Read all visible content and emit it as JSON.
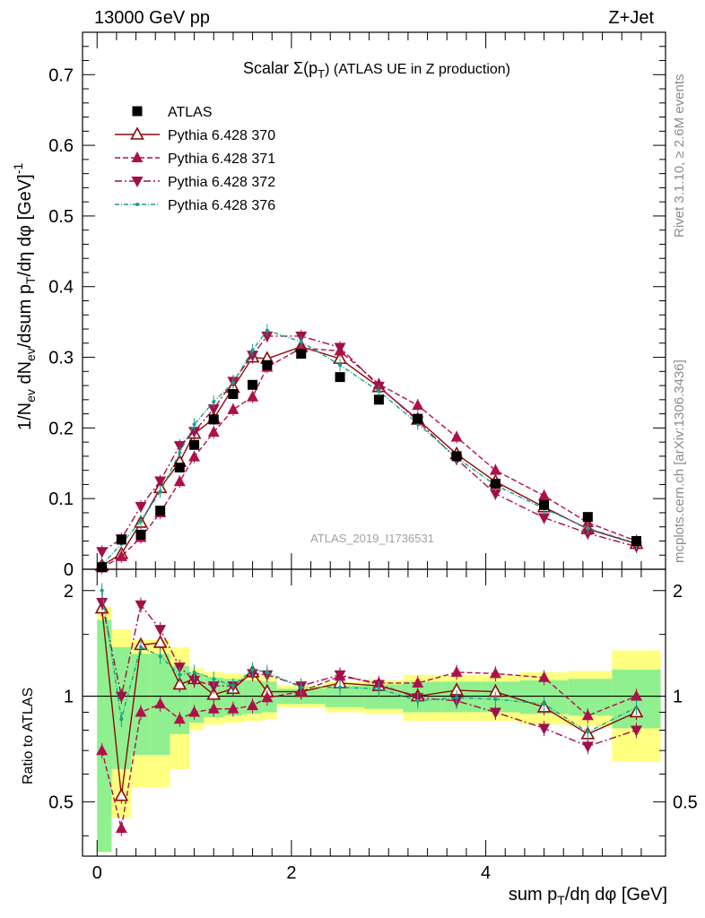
{
  "header": {
    "left": "13000 GeV pp",
    "right": "Z+Jet"
  },
  "plot_title": {
    "prefix": "Scalar Σ(p",
    "sub": "T",
    "suffix": ") (ATLAS UE in Z production)"
  },
  "side_labels": {
    "rivet": "Rivet 3.1.10, ≥ 2.6M events",
    "mcplots": "mcplots.cern.ch [arXiv:1306.3436]"
  },
  "watermark": "ATLAS_2019_I1736531",
  "colors": {
    "data": "#000000",
    "p370": "#8b0a0a",
    "p371": "#b0104a",
    "p372": "#a01048",
    "p376": "#1aa08a",
    "band_green": "#90f090",
    "band_yellow": "#ffff80"
  },
  "chart_data": [
    {
      "type": "scatter",
      "panel": "main",
      "ylabel": "1/N_ev dN_ev/dsum p_T/dη dφ [GeV]^-1",
      "xlim": [
        -0.15,
        5.85
      ],
      "ylim": [
        0,
        0.76
      ],
      "y_ticks": [
        "0",
        "0.1",
        "0.2",
        "0.3",
        "0.4",
        "0.5",
        "0.6",
        "0.7"
      ],
      "legend_position": "top-left",
      "x": [
        0.05,
        0.25,
        0.45,
        0.65,
        0.85,
        1.0,
        1.2,
        1.4,
        1.6,
        1.75,
        2.1,
        2.5,
        2.9,
        3.3,
        3.7,
        4.1,
        4.6,
        5.05,
        5.55
      ],
      "series": [
        {
          "name": "ATLAS",
          "marker": "square",
          "values": [
            0.003,
            0.042,
            0.049,
            0.083,
            0.144,
            0.176,
            0.212,
            0.248,
            0.261,
            0.289,
            0.305,
            0.272,
            0.24,
            0.213,
            0.16,
            0.121,
            0.091,
            0.074,
            0.04
          ]
        },
        {
          "name": "Pythia 6.428 370",
          "marker": "open-triangle-up",
          "values": [
            0.005,
            0.022,
            0.066,
            0.115,
            0.152,
            0.192,
            0.213,
            0.257,
            0.3,
            0.298,
            0.315,
            0.298,
            0.258,
            0.212,
            0.163,
            0.124,
            0.088,
            0.057,
            0.036
          ]
        },
        {
          "name": "Pythia 6.428 371",
          "marker": "triangle-up",
          "values": [
            0.002,
            0.018,
            0.045,
            0.08,
            0.124,
            0.159,
            0.194,
            0.226,
            0.244,
            0.286,
            0.313,
            0.309,
            0.262,
            0.232,
            0.187,
            0.14,
            0.104,
            0.066,
            0.04
          ]
        },
        {
          "name": "Pythia 6.428 372",
          "marker": "triangle-down",
          "values": [
            0.025,
            0.043,
            0.089,
            0.125,
            0.175,
            0.195,
            0.227,
            0.266,
            0.303,
            0.33,
            0.33,
            0.314,
            0.259,
            0.21,
            0.156,
            0.107,
            0.073,
            0.051,
            0.032
          ]
        },
        {
          "name": "Pythia 6.428 376",
          "marker": "dot",
          "values": [
            0.006,
            0.036,
            0.068,
            0.11,
            0.165,
            0.205,
            0.237,
            0.264,
            0.31,
            0.338,
            0.322,
            0.289,
            0.252,
            0.206,
            0.158,
            0.119,
            0.086,
            0.058,
            0.037
          ]
        }
      ]
    },
    {
      "type": "scatter",
      "panel": "ratio",
      "xlabel": "sum p_T/dη dφ [GeV]",
      "ylabel": "Ratio to ATLAS",
      "xlim": [
        -0.15,
        5.85
      ],
      "ylim": [
        0.35,
        2.3
      ],
      "x_ticks": [
        "0",
        "2",
        "4"
      ],
      "y_ticks": [
        "0.5",
        "1",
        "2"
      ],
      "x": [
        0.05,
        0.25,
        0.45,
        0.65,
        0.85,
        1.0,
        1.2,
        1.4,
        1.6,
        1.75,
        2.1,
        2.5,
        2.9,
        3.3,
        3.7,
        4.1,
        4.6,
        5.05,
        5.55
      ],
      "bin_edges": [
        0.0,
        0.15,
        0.35,
        0.55,
        0.75,
        0.95,
        1.1,
        1.3,
        1.5,
        1.7,
        1.85,
        2.35,
        2.75,
        3.15,
        3.55,
        3.95,
        4.35,
        4.85,
        5.3,
        5.8
      ],
      "band_green_halfwidth": [
        0.65,
        0.38,
        0.32,
        0.32,
        0.22,
        0.16,
        0.13,
        0.12,
        0.11,
        0.1,
        0.05,
        0.07,
        0.08,
        0.1,
        0.1,
        0.1,
        0.11,
        0.12,
        0.19
      ],
      "band_yellow_halfwidth": [
        0.8,
        0.55,
        0.45,
        0.45,
        0.38,
        0.2,
        0.17,
        0.16,
        0.15,
        0.14,
        0.07,
        0.1,
        0.11,
        0.15,
        0.15,
        0.15,
        0.17,
        0.18,
        0.35
      ],
      "series": [
        {
          "name": "Pythia 6.428 370",
          "values": [
            1.78,
            0.52,
            1.4,
            1.42,
            1.08,
            1.12,
            1.01,
            1.05,
            1.17,
            1.03,
            1.03,
            1.09,
            1.07,
            1.0,
            1.04,
            1.03,
            0.93,
            0.78,
            0.9
          ]
        },
        {
          "name": "Pythia 6.428 371",
          "values": [
            0.7,
            0.42,
            0.9,
            0.95,
            0.86,
            0.9,
            0.92,
            0.92,
            0.94,
            0.99,
            1.03,
            1.14,
            1.09,
            1.09,
            1.17,
            1.16,
            1.13,
            0.88,
            1.0
          ]
        },
        {
          "name": "Pythia 6.428 372",
          "values": [
            1.85,
            1.0,
            1.82,
            1.55,
            1.21,
            1.11,
            1.07,
            1.07,
            1.16,
            1.15,
            1.07,
            1.15,
            1.08,
            0.99,
            0.97,
            0.9,
            0.81,
            0.72,
            0.8
          ]
        },
        {
          "name": "Pythia 6.428 376",
          "values": [
            2.0,
            0.86,
            1.38,
            1.3,
            1.15,
            1.17,
            1.12,
            1.07,
            1.19,
            1.17,
            1.06,
            1.06,
            1.05,
            0.97,
            0.99,
            0.98,
            0.95,
            0.79,
            0.93
          ]
        }
      ]
    }
  ]
}
